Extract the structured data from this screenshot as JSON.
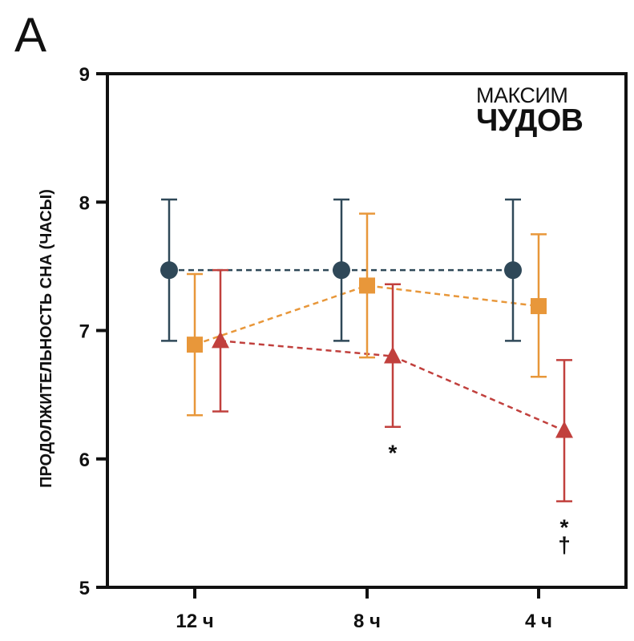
{
  "panel_label": "A",
  "logo": {
    "line1": "МАКСИМ",
    "line2": "ЧУДОВ"
  },
  "chart_data": {
    "type": "line",
    "title": "",
    "xlabel": "",
    "ylabel": "ПРОДОЛЖИТЕЛЬНОСТЬ СНА  (ЧАСЫ)",
    "ylim": [
      5,
      9
    ],
    "yticks": [
      "5",
      "6",
      "7",
      "8",
      "9"
    ],
    "categories": [
      "12 ч",
      "8 ч",
      "4 ч"
    ],
    "series": [
      {
        "name": "circle",
        "marker": "circle",
        "color": "#2f4858",
        "values": [
          7.47,
          7.47,
          7.47
        ],
        "err_low": [
          6.92,
          6.92,
          6.92
        ],
        "err_high": [
          8.02,
          8.02,
          8.02
        ]
      },
      {
        "name": "square",
        "marker": "square",
        "color": "#e8973a",
        "values": [
          6.89,
          7.35,
          7.19
        ],
        "err_low": [
          6.34,
          6.79,
          6.64
        ],
        "err_high": [
          7.44,
          7.91,
          7.75
        ]
      },
      {
        "name": "triangle",
        "marker": "triangle",
        "color": "#c1403d",
        "values": [
          6.92,
          6.8,
          6.22
        ],
        "err_low": [
          6.37,
          6.25,
          5.67
        ],
        "err_high": [
          7.47,
          7.36,
          6.77
        ]
      }
    ],
    "annotations": [
      {
        "text": "*",
        "category_index": 1,
        "series": "triangle"
      },
      {
        "text": "*",
        "category_index": 2,
        "series": "triangle"
      },
      {
        "text": "†",
        "category_index": 2,
        "series": "triangle"
      }
    ]
  }
}
